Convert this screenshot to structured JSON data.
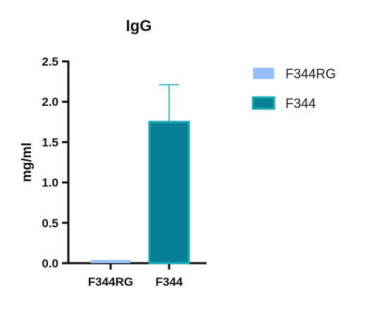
{
  "chart_data": {
    "type": "bar",
    "title": "IgG",
    "xlabel": "",
    "ylabel": "mg/ml",
    "categories": [
      "F344RG",
      "F344"
    ],
    "values": [
      0.04,
      1.75
    ],
    "error_upper": [
      0,
      2.21
    ],
    "ylim": [
      0,
      2.5
    ],
    "yticks": [
      "0.0",
      "0.5",
      "1.0",
      "1.5",
      "2.0",
      "2.5"
    ],
    "ytick_values": [
      0,
      0.5,
      1.0,
      1.5,
      2.0,
      2.5
    ],
    "grid": false,
    "legend_position": "right",
    "legend": [
      {
        "name": "F344RG",
        "color": "#94bff7"
      },
      {
        "name": "F344",
        "color": "#0a8096"
      }
    ],
    "colors": {
      "F344RG_fill": "#94bff7",
      "F344_fill": "#0a8096",
      "F344_edge": "#1aa8b5",
      "error_bar": "#1aa8b5",
      "axis": "#111111"
    }
  }
}
